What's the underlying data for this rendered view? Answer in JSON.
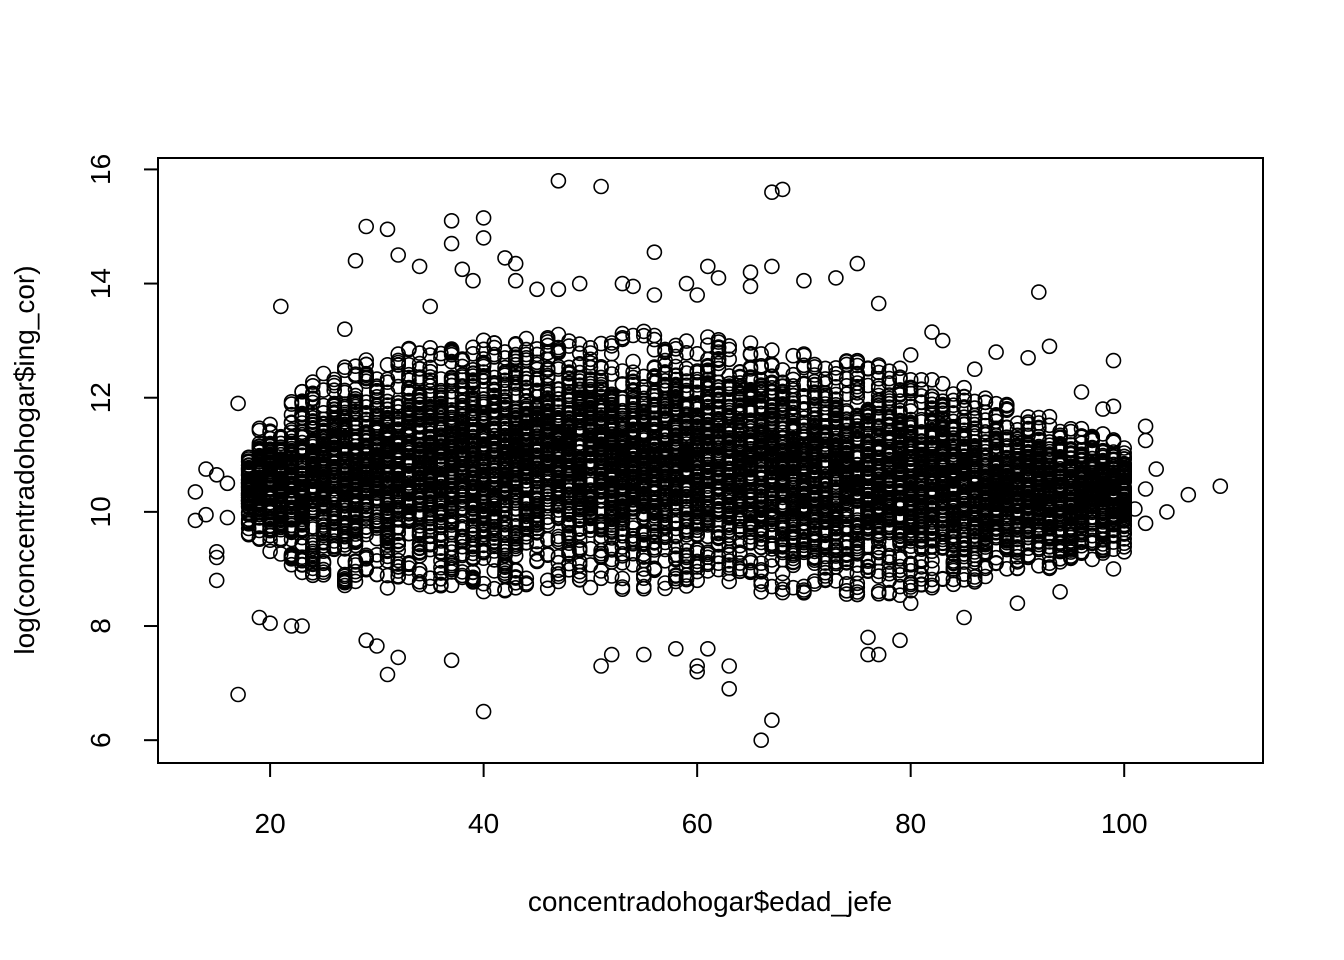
{
  "chart_data": {
    "type": "scatter",
    "title": "",
    "xlabel": "concentradohogar$edad_jefe",
    "ylabel": "log(concentradohogar$ing_cor)",
    "xlim": [
      9.5,
      113
    ],
    "ylim": [
      5.6,
      16.2
    ],
    "x_ticks": [
      20,
      40,
      60,
      80,
      100
    ],
    "y_ticks": [
      6,
      8,
      10,
      12,
      14,
      16
    ],
    "x_tick_labels": [
      "20",
      "40",
      "60",
      "80",
      "100"
    ],
    "y_tick_labels": [
      "6",
      "8",
      "10",
      "12",
      "14",
      "16"
    ],
    "grid": false,
    "legend": "none",
    "marker": "open-circle",
    "point_color": "#000000",
    "dense_cloud": {
      "x_range": [
        18,
        100
      ],
      "y_mean_at_x": [
        [
          18,
          10.4
        ],
        [
          30,
          10.7
        ],
        [
          45,
          10.9
        ],
        [
          55,
          10.9
        ],
        [
          65,
          10.8
        ],
        [
          80,
          10.5
        ],
        [
          95,
          10.3
        ]
      ],
      "y_half_spread_at_x": [
        [
          18,
          0.9
        ],
        [
          25,
          1.9
        ],
        [
          35,
          2.2
        ],
        [
          50,
          2.3
        ],
        [
          65,
          2.2
        ],
        [
          80,
          2.0
        ],
        [
          90,
          1.5
        ],
        [
          100,
          1.0
        ]
      ]
    },
    "points": [
      [
        13,
        10.35
      ],
      [
        13,
        9.85
      ],
      [
        14,
        9.95
      ],
      [
        14,
        10.75
      ],
      [
        15,
        9.2
      ],
      [
        15,
        8.8
      ],
      [
        15,
        9.3
      ],
      [
        15,
        10.65
      ],
      [
        16,
        10.5
      ],
      [
        16,
        9.9
      ],
      [
        17,
        6.8
      ],
      [
        17,
        11.9
      ],
      [
        21,
        13.6
      ],
      [
        27,
        13.2
      ],
      [
        28,
        14.4
      ],
      [
        29,
        15.0
      ],
      [
        31,
        14.95
      ],
      [
        32,
        14.5
      ],
      [
        34,
        14.3
      ],
      [
        35,
        13.6
      ],
      [
        37,
        15.1
      ],
      [
        37,
        14.7
      ],
      [
        38,
        14.25
      ],
      [
        39,
        14.05
      ],
      [
        40,
        15.15
      ],
      [
        40,
        14.8
      ],
      [
        42,
        14.45
      ],
      [
        43,
        14.35
      ],
      [
        43,
        14.05
      ],
      [
        45,
        13.9
      ],
      [
        47,
        15.8
      ],
      [
        47,
        13.9
      ],
      [
        49,
        14.0
      ],
      [
        51,
        15.7
      ],
      [
        53,
        14.0
      ],
      [
        54,
        13.95
      ],
      [
        56,
        14.55
      ],
      [
        56,
        13.8
      ],
      [
        59,
        14.0
      ],
      [
        60,
        13.8
      ],
      [
        61,
        14.3
      ],
      [
        62,
        14.1
      ],
      [
        65,
        14.2
      ],
      [
        65,
        13.95
      ],
      [
        67,
        15.6
      ],
      [
        68,
        15.65
      ],
      [
        67,
        14.3
      ],
      [
        70,
        14.05
      ],
      [
        73,
        14.1
      ],
      [
        75,
        14.35
      ],
      [
        77,
        13.65
      ],
      [
        92,
        13.85
      ],
      [
        99,
        12.65
      ],
      [
        31,
        7.15
      ],
      [
        32,
        7.45
      ],
      [
        30,
        7.65
      ],
      [
        29,
        7.75
      ],
      [
        37,
        7.4
      ],
      [
        40,
        6.5
      ],
      [
        51,
        7.3
      ],
      [
        52,
        7.5
      ],
      [
        55,
        7.5
      ],
      [
        58,
        7.6
      ],
      [
        60,
        7.2
      ],
      [
        60,
        7.3
      ],
      [
        61,
        7.6
      ],
      [
        63,
        7.3
      ],
      [
        63,
        6.9
      ],
      [
        66,
        6.0
      ],
      [
        67,
        6.35
      ],
      [
        76,
        7.5
      ],
      [
        77,
        7.5
      ],
      [
        76,
        7.8
      ],
      [
        79,
        7.75
      ],
      [
        22,
        8.0
      ],
      [
        23,
        8.0
      ],
      [
        20,
        8.05
      ],
      [
        19,
        8.15
      ],
      [
        85,
        8.15
      ],
      [
        80,
        8.4
      ],
      [
        90,
        8.4
      ],
      [
        94,
        8.6
      ],
      [
        95,
        9.2
      ],
      [
        97,
        9.5
      ],
      [
        99,
        9.0
      ],
      [
        99,
        9.6
      ],
      [
        101,
        10.05
      ],
      [
        102,
        9.8
      ],
      [
        102,
        11.5
      ],
      [
        102,
        11.25
      ],
      [
        102,
        10.4
      ],
      [
        103,
        10.75
      ],
      [
        104,
        10.0
      ],
      [
        106,
        10.3
      ],
      [
        109,
        10.45
      ],
      [
        100,
        9.3
      ],
      [
        98,
        11.8
      ],
      [
        99,
        11.85
      ],
      [
        96,
        12.1
      ],
      [
        93,
        12.9
      ],
      [
        91,
        12.7
      ],
      [
        88,
        12.8
      ],
      [
        86,
        12.5
      ],
      [
        83,
        13.0
      ],
      [
        82,
        13.15
      ],
      [
        80,
        12.75
      ]
    ]
  }
}
